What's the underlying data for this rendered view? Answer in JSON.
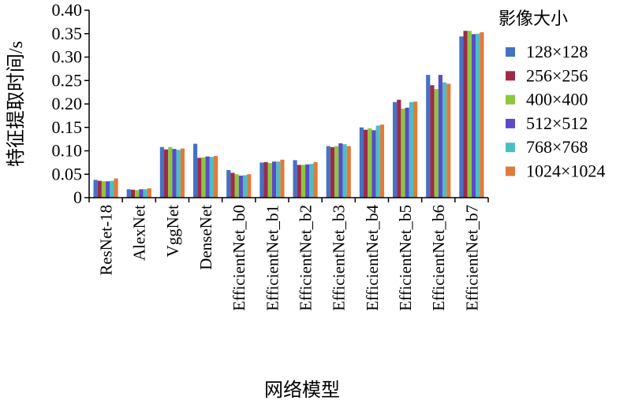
{
  "chart_data": {
    "type": "bar",
    "ylabel": "特征提取时间/s",
    "xlabel": "网络模型",
    "ylim": [
      0,
      0.4
    ],
    "yticks": [
      "0",
      "0.05",
      "0.10",
      "0.15",
      "0.20",
      "0.25",
      "0.30",
      "0.35",
      "0.40"
    ],
    "grid": false,
    "legend_title": "影像大小",
    "legend_position": "right",
    "categories": [
      "ResNet-18",
      "AlexNet",
      "VggNet",
      "DenseNet",
      "EfficientNet_b0",
      "EfficientNet_b1",
      "EfficientNet_b2",
      "EfficientNet_b3",
      "EfficientNet_b4",
      "EfficientNet_b5",
      "EfficientNet_b6",
      "EfficientNet_b7"
    ],
    "series": [
      {
        "name": "128×128",
        "color": "#4472C4",
        "values": [
          0.038,
          0.018,
          0.108,
          0.115,
          0.059,
          0.075,
          0.08,
          0.11,
          0.15,
          0.204,
          0.262,
          0.344
        ]
      },
      {
        "name": "256×256",
        "color": "#9E2A4A",
        "values": [
          0.036,
          0.017,
          0.103,
          0.085,
          0.053,
          0.076,
          0.07,
          0.108,
          0.145,
          0.209,
          0.24,
          0.356
        ]
      },
      {
        "name": "400×400",
        "color": "#8DC63F",
        "values": [
          0.035,
          0.016,
          0.108,
          0.086,
          0.05,
          0.074,
          0.07,
          0.11,
          0.148,
          0.19,
          0.232,
          0.356
        ]
      },
      {
        "name": "512×512",
        "color": "#5B4BC4",
        "values": [
          0.035,
          0.018,
          0.104,
          0.088,
          0.047,
          0.077,
          0.071,
          0.116,
          0.144,
          0.192,
          0.262,
          0.349
        ]
      },
      {
        "name": "768×768",
        "color": "#4BBEC4",
        "values": [
          0.036,
          0.018,
          0.102,
          0.087,
          0.048,
          0.077,
          0.072,
          0.114,
          0.154,
          0.204,
          0.246,
          0.35
        ]
      },
      {
        "name": "1024×1024",
        "color": "#E07B3C",
        "values": [
          0.041,
          0.02,
          0.105,
          0.089,
          0.05,
          0.081,
          0.076,
          0.11,
          0.156,
          0.205,
          0.243,
          0.353
        ]
      }
    ]
  }
}
